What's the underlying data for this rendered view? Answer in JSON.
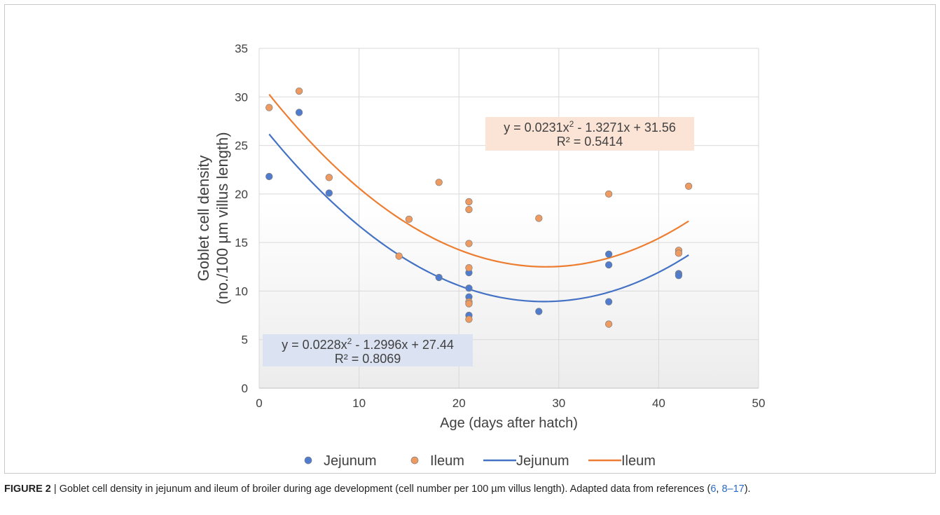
{
  "chart_data": {
    "type": "scatter",
    "xlabel": "Age (days after hatch)",
    "ylabel_line1": "Goblet cell density",
    "ylabel_line2": "(no./100 µm villus length)",
    "xlim": [
      0,
      50
    ],
    "ylim": [
      0,
      35
    ],
    "x_ticks": [
      0,
      10,
      20,
      30,
      40,
      50
    ],
    "y_ticks": [
      0,
      5,
      10,
      15,
      20,
      25,
      30,
      35
    ],
    "grid": true,
    "legend_position": "bottom",
    "series": [
      {
        "name": "Jejunum",
        "marker_color": "#4f7ccf",
        "points": [
          {
            "x": 1,
            "y": 21.8
          },
          {
            "x": 4,
            "y": 28.4
          },
          {
            "x": 7,
            "y": 20.1
          },
          {
            "x": 18,
            "y": 11.4
          },
          {
            "x": 21,
            "y": 11.9
          },
          {
            "x": 21,
            "y": 10.3
          },
          {
            "x": 21,
            "y": 9.4
          },
          {
            "x": 21,
            "y": 7.5
          },
          {
            "x": 28,
            "y": 7.9
          },
          {
            "x": 35,
            "y": 13.8
          },
          {
            "x": 35,
            "y": 12.7
          },
          {
            "x": 35,
            "y": 8.9
          },
          {
            "x": 42,
            "y": 11.8
          },
          {
            "x": 42,
            "y": 11.6
          }
        ]
      },
      {
        "name": "Ileum",
        "marker_color": "#ee9a60",
        "points": [
          {
            "x": 1,
            "y": 28.9
          },
          {
            "x": 4,
            "y": 30.6
          },
          {
            "x": 7,
            "y": 21.7
          },
          {
            "x": 14,
            "y": 13.6
          },
          {
            "x": 15,
            "y": 17.4
          },
          {
            "x": 18,
            "y": 21.2
          },
          {
            "x": 21,
            "y": 19.2
          },
          {
            "x": 21,
            "y": 18.4
          },
          {
            "x": 21,
            "y": 14.9
          },
          {
            "x": 21,
            "y": 12.4
          },
          {
            "x": 21,
            "y": 8.9
          },
          {
            "x": 21,
            "y": 8.7
          },
          {
            "x": 21,
            "y": 7.1
          },
          {
            "x": 28,
            "y": 17.5
          },
          {
            "x": 35,
            "y": 20.0
          },
          {
            "x": 35,
            "y": 6.6
          },
          {
            "x": 42,
            "y": 14.2
          },
          {
            "x": 42,
            "y": 13.9
          },
          {
            "x": 43,
            "y": 20.8
          }
        ]
      }
    ],
    "trendlines": [
      {
        "name": "Jejunum",
        "color": "#4472c4",
        "type": "polynomial-2",
        "a": 0.0228,
        "b": -1.2996,
        "c": 27.44,
        "x_range": [
          1,
          43
        ],
        "equation": "y = 0.0228x",
        "equation_sup": "2",
        "equation_rest": " - 1.2996x + 27.44",
        "r2": "R² = 0.8069",
        "box_color": "#dbe3f3"
      },
      {
        "name": "Ileum",
        "color": "#ed7d31",
        "type": "polynomial-2",
        "a": 0.0231,
        "b": -1.3271,
        "c": 31.56,
        "x_range": [
          1,
          43
        ],
        "equation": "y = 0.0231x",
        "equation_sup": "2",
        "equation_rest": " - 1.3271x + 31.56",
        "r2": "R² = 0.5414",
        "box_color": "#fbe4d6"
      }
    ],
    "legend": [
      "Jejunum",
      "Ileum",
      "Jejunum",
      "Ileum"
    ]
  },
  "caption": {
    "label": "FIGURE 2",
    "separator": " | ",
    "text": "Goblet cell density in jejunum and ileum of broiler during age development (cell number per 100 µm villus length). Adapted data from references (",
    "ref1": "6",
    "ref_sep": ", ",
    "ref2": "8–17",
    "end": ")."
  }
}
